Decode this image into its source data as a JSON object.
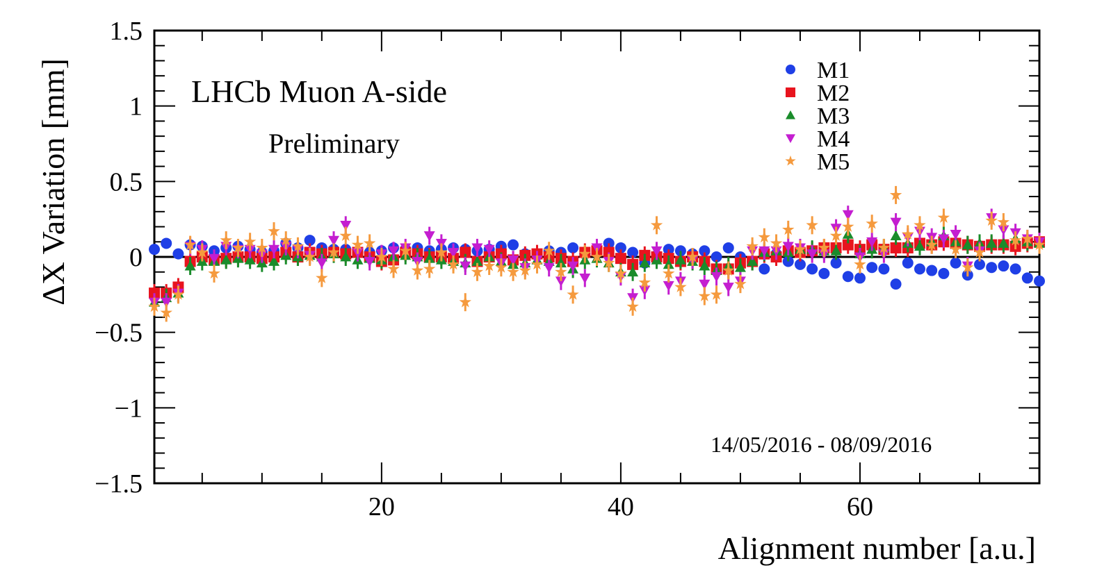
{
  "chart_data": {
    "type": "scatter",
    "title": "",
    "xlabel": "Alignment number [a.u.]",
    "ylabel": "ΔX Variation [mm]",
    "xlim": [
      1,
      75
    ],
    "ylim": [
      -1.5,
      1.5
    ],
    "x_ticks": [
      20,
      40,
      60
    ],
    "y_ticks": [
      -1.5,
      -1,
      -0.5,
      0,
      0.5,
      1,
      1.5
    ],
    "y_tick_labels": [
      "−1.5",
      "−1",
      "−0.5",
      "0",
      "0.5",
      "1",
      "1.5"
    ],
    "grid": false,
    "reference_line_y": 0,
    "legend_position": "top-right",
    "annotations": {
      "experiment": "LHCb Muon A-side",
      "status": "Preliminary",
      "date_range": "14/05/2016 - 08/09/2016"
    },
    "x": [
      1,
      2,
      3,
      4,
      5,
      6,
      7,
      8,
      9,
      10,
      11,
      12,
      13,
      14,
      15,
      16,
      17,
      18,
      19,
      20,
      21,
      22,
      23,
      24,
      25,
      26,
      27,
      28,
      29,
      30,
      31,
      32,
      33,
      34,
      35,
      36,
      37,
      38,
      39,
      40,
      41,
      42,
      43,
      44,
      45,
      46,
      47,
      48,
      49,
      50,
      51,
      52,
      53,
      54,
      55,
      56,
      57,
      58,
      59,
      60,
      61,
      62,
      63,
      64,
      65,
      66,
      67,
      68,
      69,
      70,
      71,
      72,
      73,
      74,
      75
    ],
    "series": [
      {
        "name": "M1",
        "marker": "circle",
        "color": "#1f3fe6",
        "values": [
          0.05,
          0.09,
          0.02,
          0.08,
          0.07,
          0.04,
          0.06,
          0.07,
          0.05,
          0.03,
          0.04,
          0.09,
          0.06,
          0.11,
          0.06,
          0.05,
          0.05,
          0.03,
          0.03,
          0.04,
          0.06,
          0.05,
          0.06,
          0.04,
          0.05,
          0.06,
          0.05,
          0.04,
          0.05,
          0.07,
          0.08,
          0.02,
          0.01,
          0.04,
          0.03,
          0.06,
          0.02,
          0.04,
          0.09,
          0.06,
          0.03,
          -0.04,
          0.01,
          0.05,
          0.04,
          0.02,
          0.04,
          0.0,
          0.06,
          0.0,
          -0.03,
          -0.08,
          0.02,
          -0.03,
          -0.05,
          -0.08,
          -0.11,
          -0.04,
          -0.13,
          -0.14,
          -0.07,
          -0.08,
          -0.18,
          -0.04,
          -0.08,
          -0.09,
          -0.11,
          -0.04,
          -0.12,
          -0.05,
          -0.07,
          -0.06,
          -0.08,
          -0.14,
          -0.16
        ]
      },
      {
        "name": "M2",
        "marker": "square",
        "color": "#e8141e",
        "values": [
          -0.24,
          -0.24,
          -0.2,
          -0.03,
          0.0,
          -0.02,
          -0.01,
          0.0,
          0.0,
          -0.01,
          0.0,
          0.03,
          0.0,
          0.03,
          0.02,
          0.03,
          0.02,
          0.03,
          0.0,
          -0.03,
          -0.02,
          0.03,
          0.02,
          0.0,
          0.0,
          -0.01,
          0.03,
          -0.03,
          0.0,
          0.02,
          -0.02,
          0.01,
          0.02,
          0.0,
          -0.01,
          -0.03,
          0.03,
          0.04,
          0.03,
          -0.01,
          -0.05,
          0.01,
          0.0,
          -0.01,
          -0.03,
          0.0,
          -0.03,
          -0.08,
          -0.08,
          -0.04,
          -0.03,
          0.02,
          0.0,
          0.04,
          0.03,
          0.04,
          0.06,
          0.06,
          0.08,
          0.05,
          0.08,
          0.05,
          0.06,
          0.06,
          0.09,
          0.08,
          0.1,
          0.09,
          0.08,
          0.07,
          0.08,
          0.08,
          0.07,
          0.09,
          0.1
        ]
      },
      {
        "name": "M3",
        "marker": "triangle-up",
        "color": "#1a8c2b",
        "values": [
          -0.3,
          -0.27,
          -0.24,
          -0.06,
          -0.03,
          -0.03,
          -0.02,
          -0.01,
          -0.02,
          -0.04,
          -0.03,
          0.01,
          0.0,
          0.01,
          0.0,
          0.02,
          0.0,
          -0.02,
          -0.01,
          -0.02,
          0.0,
          0.01,
          0.0,
          -0.01,
          -0.02,
          -0.03,
          -0.04,
          -0.03,
          0.0,
          -0.03,
          -0.05,
          -0.04,
          -0.02,
          -0.03,
          -0.04,
          -0.08,
          -0.02,
          -0.01,
          -0.04,
          -0.1,
          -0.1,
          -0.04,
          -0.02,
          -0.05,
          -0.02,
          -0.03,
          -0.06,
          -0.09,
          -0.06,
          -0.07,
          -0.03,
          0.03,
          0.04,
          0.03,
          0.05,
          0.05,
          0.04,
          0.04,
          0.15,
          0.02,
          0.05,
          0.06,
          0.14,
          0.09,
          0.07,
          0.1,
          0.14,
          0.1,
          0.08,
          0.09,
          0.09,
          0.09,
          0.12,
          0.1,
          0.09
        ]
      },
      {
        "name": "M4",
        "marker": "triangle-down",
        "color": "#c41ed0",
        "values": [
          -0.3,
          -0.3,
          -0.24,
          0.07,
          0.05,
          -0.01,
          0.07,
          0.05,
          0.05,
          0.02,
          0.05,
          0.07,
          0.05,
          0.01,
          -0.04,
          0.11,
          0.21,
          0.03,
          -0.03,
          0.02,
          0.04,
          0.06,
          -0.03,
          0.14,
          0.09,
          0.03,
          -0.06,
          0.06,
          0.05,
          -0.04,
          -0.02,
          -0.07,
          -0.02,
          -0.07,
          -0.16,
          -0.06,
          -0.14,
          0.06,
          -0.03,
          -0.13,
          -0.27,
          -0.22,
          0.04,
          -0.19,
          -0.16,
          -0.02,
          -0.18,
          -0.13,
          -0.2,
          -0.16,
          0.04,
          0.04,
          0.04,
          0.07,
          0.06,
          0.02,
          0.02,
          0.19,
          0.28,
          0.0,
          0.1,
          0.02,
          0.23,
          0.13,
          0.17,
          0.13,
          0.12,
          0.15,
          -0.06,
          0.04,
          0.26,
          0.18,
          0.16,
          0.12,
          0.1
        ]
      },
      {
        "name": "M5",
        "marker": "star",
        "color": "#f59a3e",
        "values": [
          -0.33,
          -0.37,
          -0.25,
          0.08,
          0.03,
          -0.11,
          0.11,
          0.06,
          0.1,
          0.06,
          0.17,
          0.11,
          0.07,
          0.0,
          -0.14,
          0.03,
          0.14,
          0.08,
          0.09,
          0.0,
          -0.08,
          0.04,
          -0.09,
          -0.08,
          0.03,
          -0.05,
          -0.3,
          -0.1,
          -0.06,
          -0.07,
          -0.1,
          -0.09,
          -0.05,
          0.04,
          -0.1,
          -0.25,
          0.02,
          0.0,
          -0.04,
          -0.11,
          -0.33,
          -0.17,
          0.21,
          -0.11,
          -0.2,
          0.0,
          -0.26,
          -0.25,
          -0.09,
          -0.18,
          0.07,
          0.13,
          0.09,
          0.18,
          0.05,
          0.21,
          0.06,
          0.14,
          0.2,
          -0.05,
          0.22,
          0.06,
          0.41,
          0.15,
          0.21,
          0.08,
          0.26,
          0.05,
          -0.07,
          0.03,
          0.24,
          0.23,
          0.11,
          0.12,
          0.08
        ]
      }
    ]
  }
}
